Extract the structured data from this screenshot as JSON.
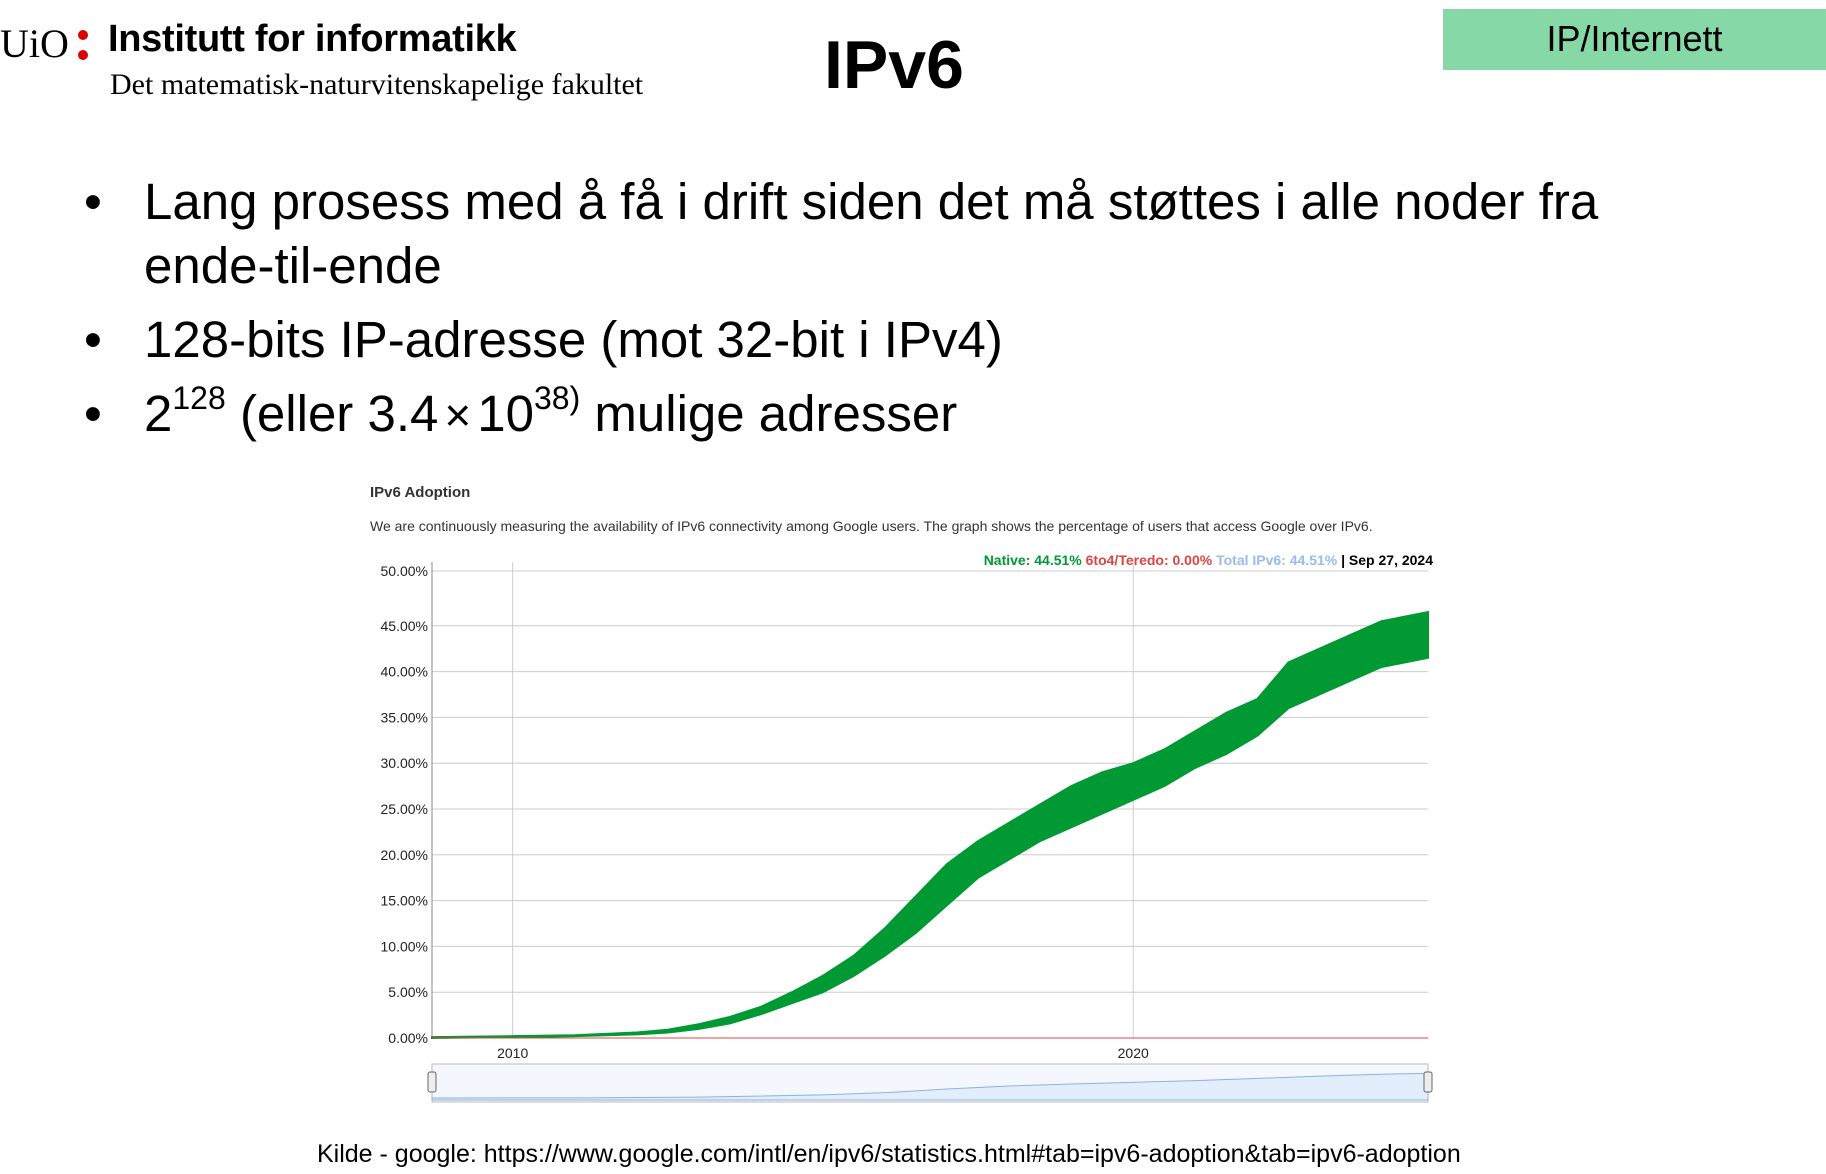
{
  "header": {
    "logo_uio": "UiO",
    "institute": "Institutt for informatikk",
    "faculty": "Det matematisk-naturvitenskapelige fakultet",
    "title": "IPv6",
    "topic_badge": "IP/Internett",
    "colors": {
      "logo_dot": "#dd0000",
      "badge": "#86d9a6"
    }
  },
  "bullets": {
    "item1": "Lang prosess med å få i drift siden det må støttes i alle noder fra ende-til-ende",
    "item2": "128-bits IP-adresse (mot 32-bit i IPv4)",
    "item3": {
      "base": "2",
      "exp": "128",
      "mid": "(eller 3.4",
      "times": "×",
      "ten": "10",
      "exp2": "38)",
      "tail": "mulige adresser"
    },
    "marker": "•"
  },
  "chart_data": {
    "type": "area",
    "title": "IPv6 Adoption",
    "subtitle": "We are continuously measuring the availability of IPv6 connectivity among Google users. The graph shows the percentage of users that access Google over IPv6.",
    "legend": {
      "native": "Native: 44.51%",
      "teredo": "6to4/Teredo: 0.00%",
      "total": "Total IPv6: 44.51%",
      "date": "| Sep 27, 2024"
    },
    "colors": {
      "native": "#009933",
      "teredo": "#dd4444",
      "total": "#99bbee",
      "grid": "#cccccc"
    },
    "x_ticks": [
      {
        "label": "2010",
        "value": 2010
      },
      {
        "label": "2020",
        "value": 2020
      }
    ],
    "xlim": [
      2008.7,
      2024.75
    ],
    "y_ticks": [
      "0.00%",
      "5.00%",
      "10.00%",
      "15.00%",
      "20.00%",
      "25.00%",
      "30.00%",
      "35.00%",
      "40.00%",
      "45.00%",
      "50.00%"
    ],
    "ylim": [
      0,
      50
    ],
    "series": [
      {
        "name": "Native",
        "x": [
          2008.7,
          2010,
          2011,
          2012,
          2012.5,
          2013,
          2013.5,
          2014,
          2014.5,
          2015,
          2015.5,
          2016,
          2016.5,
          2017,
          2017.5,
          2018,
          2018.5,
          2019,
          2019.5,
          2020,
          2020.5,
          2021,
          2021.5,
          2022,
          2022.5,
          2023,
          2023.5,
          2024,
          2024.75
        ],
        "low": [
          0.0,
          0.1,
          0.2,
          0.4,
          0.6,
          1.0,
          1.6,
          2.6,
          3.8,
          5.0,
          6.8,
          9.0,
          11.5,
          14.5,
          17.5,
          19.5,
          21.5,
          23.0,
          24.5,
          26.0,
          27.5,
          29.5,
          31.0,
          33.0,
          36.0,
          37.5,
          39.0,
          40.5,
          41.5
        ],
        "high": [
          0.1,
          0.2,
          0.3,
          0.6,
          0.9,
          1.5,
          2.3,
          3.4,
          5.0,
          6.8,
          9.0,
          12.0,
          15.5,
          19.0,
          21.5,
          23.5,
          25.5,
          27.5,
          29.0,
          30.0,
          31.5,
          33.5,
          35.5,
          37.0,
          41.0,
          42.5,
          44.0,
          45.5,
          46.5
        ]
      },
      {
        "name": "6to4/Teredo",
        "x": [
          2008.7,
          2024.75
        ],
        "values": [
          0.0,
          0.0
        ]
      }
    ],
    "navigator": {
      "x": [
        2008.7,
        2011,
        2013,
        2015,
        2016,
        2017,
        2018,
        2019,
        2020,
        2021,
        2022,
        2023,
        2024,
        2024.75
      ],
      "values": [
        0,
        0.3,
        1.5,
        5.5,
        9.5,
        16,
        21.5,
        25,
        28,
        31,
        35,
        39,
        42.5,
        44
      ]
    }
  },
  "source": "Kilde - google: https://www.google.com/intl/en/ipv6/statistics.html#tab=ipv6-adoption&tab=ipv6-adoption"
}
